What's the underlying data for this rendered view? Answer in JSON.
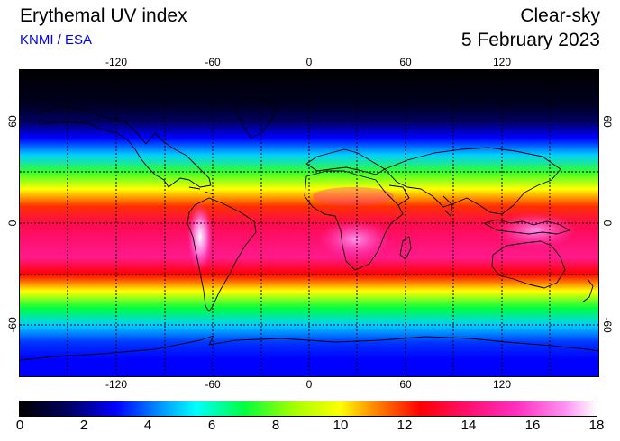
{
  "header": {
    "title": "Erythemal UV index",
    "credit": "KNMI / ESA",
    "condition": "Clear-sky",
    "date": "5 February 2023"
  },
  "map": {
    "projection": "equirectangular",
    "lon_range": [
      -180,
      180
    ],
    "lat_range": [
      -90,
      90
    ],
    "top_lon_ticks": [
      "-120",
      "-60",
      "0",
      "60",
      "120"
    ],
    "bottom_lon_ticks": [
      "-120",
      "-60",
      "0",
      "60",
      "120"
    ],
    "left_lat_ticks": [
      "60",
      "0",
      "-60"
    ],
    "right_lat_ticks": [
      "60",
      "0",
      "-60"
    ],
    "grid": "dotted every 30 degrees",
    "uv_profile_by_latitude": [
      {
        "lat": 90,
        "uv": 0
      },
      {
        "lat": 70,
        "uv": 0.5
      },
      {
        "lat": 60,
        "uv": 1.5
      },
      {
        "lat": 50,
        "uv": 3
      },
      {
        "lat": 40,
        "uv": 5
      },
      {
        "lat": 30,
        "uv": 7.5
      },
      {
        "lat": 20,
        "uv": 10
      },
      {
        "lat": 10,
        "uv": 12
      },
      {
        "lat": 0,
        "uv": 13.5
      },
      {
        "lat": -10,
        "uv": 14
      },
      {
        "lat": -20,
        "uv": 14.5
      },
      {
        "lat": -30,
        "uv": 12.5
      },
      {
        "lat": -40,
        "uv": 10
      },
      {
        "lat": -50,
        "uv": 7
      },
      {
        "lat": -60,
        "uv": 5
      },
      {
        "lat": -70,
        "uv": 3.5
      },
      {
        "lat": -80,
        "uv": 3
      },
      {
        "lat": -90,
        "uv": 3
      }
    ],
    "hotspots": [
      {
        "name": "Andes",
        "lon": -68,
        "lat": -22,
        "uv": 18
      },
      {
        "name": "southern Africa",
        "lon": 25,
        "lat": -12,
        "uv": 16
      },
      {
        "name": "New Guinea",
        "lon": 140,
        "lat": -4,
        "uv": 17
      }
    ]
  },
  "colorbar": {
    "min": 0,
    "max": 18,
    "tick_labels": [
      "0",
      "2",
      "4",
      "6",
      "8",
      "10",
      "12",
      "14",
      "16",
      "18"
    ],
    "stops": [
      {
        "v": 0,
        "c": "#000000"
      },
      {
        "v": 1.5,
        "c": "#000060"
      },
      {
        "v": 3,
        "c": "#0000ff"
      },
      {
        "v": 4.5,
        "c": "#00a0ff"
      },
      {
        "v": 5.5,
        "c": "#00ffff"
      },
      {
        "v": 7,
        "c": "#00ff40"
      },
      {
        "v": 8.5,
        "c": "#a0ff00"
      },
      {
        "v": 10,
        "c": "#ffff00"
      },
      {
        "v": 11,
        "c": "#ff9000"
      },
      {
        "v": 12.5,
        "c": "#ff0000"
      },
      {
        "v": 14,
        "c": "#ff1070"
      },
      {
        "v": 15.5,
        "c": "#ff30c0"
      },
      {
        "v": 17,
        "c": "#ff90f0"
      },
      {
        "v": 18,
        "c": "#ffffff"
      }
    ]
  },
  "colors": {
    "credit": "#0000ff",
    "coastline": "#000000"
  }
}
